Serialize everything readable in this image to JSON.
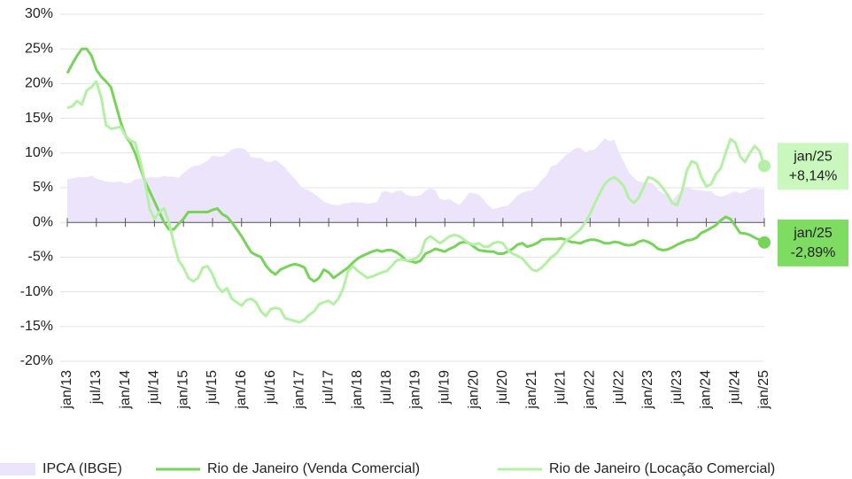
{
  "chart_data": {
    "type": "line",
    "categories": [
      "jan/13",
      null,
      null,
      null,
      null,
      null,
      "jul/13",
      null,
      null,
      null,
      null,
      null,
      "jan/14",
      null,
      null,
      null,
      null,
      null,
      "jul/14",
      null,
      null,
      null,
      null,
      null,
      "jan/15",
      null,
      null,
      null,
      null,
      null,
      "jul/15",
      null,
      null,
      null,
      null,
      null,
      "jan/16",
      null,
      null,
      null,
      null,
      null,
      "jul/16",
      null,
      null,
      null,
      null,
      null,
      "jan/17",
      null,
      null,
      null,
      null,
      null,
      "jul/17",
      null,
      null,
      null,
      null,
      null,
      "jan/18",
      null,
      null,
      null,
      null,
      null,
      "jul/18",
      null,
      null,
      null,
      null,
      null,
      "jan/19",
      null,
      null,
      null,
      null,
      null,
      "jul/19",
      null,
      null,
      null,
      null,
      null,
      "jan/20",
      null,
      null,
      null,
      null,
      null,
      "jul/20",
      null,
      null,
      null,
      null,
      null,
      "jan/21",
      null,
      null,
      null,
      null,
      null,
      "jul/21",
      null,
      null,
      null,
      null,
      null,
      "jan/22",
      null,
      null,
      null,
      null,
      null,
      "jul/22",
      null,
      null,
      null,
      null,
      null,
      "jan/23",
      null,
      null,
      null,
      null,
      null,
      "jul/23",
      null,
      null,
      null,
      null,
      null,
      "jan/24",
      null,
      null,
      null,
      null,
      null,
      "jul/24",
      null,
      null,
      null,
      null,
      null,
      "jan/25"
    ],
    "series": [
      {
        "name": "IPCA (IBGE)",
        "color": "#ece4fa",
        "kind": "area",
        "values": [
          6.2,
          6.3,
          6.5,
          6.5,
          6.5,
          6.7,
          6.3,
          6.1,
          5.9,
          5.8,
          5.8,
          5.9,
          5.6,
          5.7,
          6.2,
          6.3,
          6.4,
          6.5,
          6.5,
          6.5,
          6.7,
          6.6,
          6.6,
          6.4,
          7.1,
          7.7,
          8.1,
          8.2,
          8.5,
          8.9,
          9.6,
          9.5,
          9.5,
          9.9,
          10.5,
          10.7,
          10.7,
          10.4,
          9.4,
          9.3,
          9.3,
          8.8,
          8.7,
          9.0,
          8.5,
          7.9,
          7.0,
          6.3,
          5.4,
          4.8,
          4.6,
          4.1,
          3.6,
          3.0,
          2.7,
          2.5,
          2.5,
          2.7,
          2.8,
          2.9,
          2.9,
          2.8,
          2.7,
          2.8,
          2.9,
          4.4,
          4.5,
          4.2,
          4.5,
          4.6,
          4.0,
          3.8,
          3.8,
          3.9,
          4.6,
          4.9,
          4.7,
          3.4,
          3.2,
          3.4,
          2.9,
          2.5,
          3.3,
          4.3,
          4.2,
          4.0,
          3.3,
          2.4,
          1.9,
          2.1,
          2.3,
          2.4,
          3.1,
          3.9,
          4.3,
          4.5,
          4.6,
          5.2,
          6.1,
          6.8,
          8.1,
          8.3,
          9.0,
          9.7,
          10.2,
          10.7,
          10.7,
          10.1,
          10.4,
          10.5,
          11.3,
          12.1,
          11.7,
          11.9,
          10.1,
          8.7,
          7.2,
          6.5,
          5.9,
          5.8,
          5.8,
          5.6,
          4.7,
          4.2,
          3.9,
          3.2,
          4.0,
          4.6,
          5.2,
          4.8,
          4.7,
          4.6,
          4.5,
          4.5,
          3.9,
          3.7,
          3.9,
          4.2,
          4.5,
          4.2,
          4.4,
          4.8,
          4.9,
          4.8,
          4.8
        ]
      },
      {
        "name": "Rio de Janeiro (Venda Comercial)",
        "color": "#77d35a",
        "kind": "line",
        "values": [
          21.5,
          22.8,
          24,
          25,
          25,
          24,
          22,
          21,
          20.3,
          19.5,
          17,
          14.5,
          12.5,
          11.5,
          10,
          8,
          6,
          4.5,
          3,
          1.5,
          0,
          -1,
          -1,
          -0.2,
          0.5,
          1.5,
          1.5,
          1.5,
          1.5,
          1.5,
          1.8,
          2,
          1.2,
          0.8,
          0,
          -1,
          -2,
          -3.2,
          -4.3,
          -4.7,
          -5,
          -6.2,
          -7,
          -7.5,
          -6.8,
          -6.5,
          -6.2,
          -6,
          -6.2,
          -6.5,
          -8,
          -8.5,
          -8,
          -6.8,
          -7.2,
          -8,
          -7.5,
          -7,
          -6.5,
          -5.8,
          -5.2,
          -4.8,
          -4.5,
          -4.2,
          -4,
          -4.2,
          -4,
          -4,
          -4.3,
          -4.8,
          -5.5,
          -5.6,
          -5.8,
          -5.5,
          -4.5,
          -4.2,
          -3.8,
          -4,
          -4.2,
          -3.8,
          -3.5,
          -3,
          -2.8,
          -3,
          -3.5,
          -4,
          -4.1,
          -4.2,
          -4.2,
          -4.5,
          -4.5,
          -4.2,
          -3.8,
          -3.2,
          -3,
          -3.5,
          -3.3,
          -3,
          -2.5,
          -2.4,
          -2.4,
          -2.4,
          -2.3,
          -2.5,
          -2.8,
          -2.9,
          -3,
          -2.7,
          -2.5,
          -2.5,
          -2.7,
          -3,
          -3,
          -2.8,
          -2.9,
          -3.2,
          -3.3,
          -3.2,
          -2.8,
          -2.6,
          -2.8,
          -3.2,
          -3.8,
          -4,
          -3.9,
          -3.6,
          -3.2,
          -2.9,
          -2.6,
          -2.5,
          -2.2,
          -1.5,
          -1.2,
          -0.8,
          -0.4,
          0.3,
          0.8,
          0.5,
          -0.5,
          -1.5,
          -1.6,
          -1.8,
          -2.2,
          -2.5,
          -2.89
        ],
        "value_labels": [
          null,
          null,
          null,
          null,
          null,
          null,
          null,
          null,
          null,
          null,
          null,
          null,
          null,
          null,
          null,
          null,
          null,
          null,
          null,
          null,
          null,
          null,
          null,
          null,
          null,
          null,
          null,
          null,
          null,
          null,
          null,
          null,
          null,
          null,
          null,
          null,
          null,
          null,
          null,
          null,
          null,
          null,
          null,
          null,
          null,
          null,
          null,
          null,
          null,
          null,
          null,
          null,
          null,
          null,
          null,
          null,
          null,
          null,
          null,
          null,
          null,
          null,
          null,
          null,
          null,
          null,
          null,
          null,
          null,
          null,
          null,
          null,
          null,
          null,
          null,
          null,
          null,
          null,
          null,
          null,
          null,
          null,
          null,
          null,
          null,
          null,
          null,
          null,
          null,
          null,
          null,
          null,
          null,
          null,
          null,
          null,
          null,
          null,
          null,
          null,
          null,
          null,
          null,
          null,
          null,
          null,
          null,
          null,
          null,
          null,
          null,
          null,
          null,
          null,
          null,
          null,
          null,
          null,
          null,
          null,
          null,
          null,
          null,
          null,
          null,
          null,
          null,
          null,
          null,
          null,
          null,
          null,
          null,
          null,
          null,
          null,
          null,
          null,
          null,
          null,
          null,
          null,
          null,
          null,
          "-2,89%"
        ]
      },
      {
        "name": "Rio de Janeiro (Locação Comercial)",
        "color": "#b4f0a4",
        "kind": "line",
        "values": [
          16.5,
          16.7,
          17.5,
          17,
          19,
          19.5,
          20.3,
          18,
          14,
          13.5,
          13.6,
          13.8,
          12.5,
          11.8,
          11.5,
          9,
          6,
          2,
          0.5,
          1.5,
          2,
          0,
          -3,
          -5.5,
          -6.5,
          -8,
          -8.5,
          -8,
          -6.5,
          -6.3,
          -7.5,
          -9.2,
          -10,
          -9.5,
          -11,
          -11.5,
          -12,
          -11.2,
          -11,
          -11.5,
          -12.8,
          -13.5,
          -12.5,
          -12.3,
          -12.5,
          -13.8,
          -14,
          -14.2,
          -14.4,
          -14,
          -13.3,
          -12.8,
          -11.8,
          -11.5,
          -11.3,
          -11.8,
          -11,
          -9.5,
          -7,
          -6.3,
          -7,
          -7.5,
          -8,
          -7.8,
          -7.5,
          -7.2,
          -7,
          -6.3,
          -5.5,
          -5.3,
          -5.5,
          -5.4,
          -5.2,
          -4.5,
          -2.5,
          -2,
          -2.5,
          -3,
          -2.5,
          -2,
          -1.8,
          -2,
          -2.5,
          -3,
          -3.2,
          -3,
          -3.5,
          -3.5,
          -3,
          -2.8,
          -3,
          -4,
          -4.5,
          -4.8,
          -5.2,
          -6,
          -6.8,
          -7,
          -6.5,
          -5.8,
          -5,
          -4.5,
          -3.6,
          -2.6,
          -2.2,
          -1.6,
          -1,
          0,
          1.2,
          2.8,
          4.2,
          5.5,
          6.2,
          6.5,
          6,
          5.2,
          3.5,
          2.8,
          3.5,
          5,
          6.5,
          6.3,
          5.8,
          5,
          4,
          2.8,
          2.5,
          4.5,
          7.5,
          8.8,
          8.5,
          6.5,
          5.2,
          5.5,
          7,
          7.8,
          10,
          12,
          11.5,
          9.5,
          8.7,
          10,
          11,
          10.3,
          8.14
        ],
        "value_labels": [
          null,
          null,
          null,
          null,
          null,
          null,
          null,
          null,
          null,
          null,
          null,
          null,
          null,
          null,
          null,
          null,
          null,
          null,
          null,
          null,
          null,
          null,
          null,
          null,
          null,
          null,
          null,
          null,
          null,
          null,
          null,
          null,
          null,
          null,
          null,
          null,
          null,
          null,
          null,
          null,
          null,
          null,
          null,
          null,
          null,
          null,
          null,
          null,
          null,
          null,
          null,
          null,
          null,
          null,
          null,
          null,
          null,
          null,
          null,
          null,
          null,
          null,
          null,
          null,
          null,
          null,
          null,
          null,
          null,
          null,
          null,
          null,
          null,
          null,
          null,
          null,
          null,
          null,
          null,
          null,
          null,
          null,
          null,
          null,
          null,
          null,
          null,
          null,
          null,
          null,
          null,
          null,
          null,
          null,
          null,
          null,
          null,
          null,
          null,
          null,
          null,
          null,
          null,
          null,
          null,
          null,
          null,
          null,
          null,
          null,
          null,
          null,
          null,
          null,
          null,
          null,
          null,
          null,
          null,
          null,
          null,
          null,
          null,
          null,
          null,
          null,
          null,
          null,
          null,
          null,
          null,
          null,
          null,
          null,
          null,
          null,
          null,
          null,
          null,
          null,
          null,
          null,
          null,
          null,
          "+8,14%"
        ]
      }
    ],
    "ylim": [
      -20,
      30
    ],
    "yticks": [
      {
        "value": -20,
        "label": "-20%"
      },
      {
        "value": -15,
        "label": "-15%"
      },
      {
        "value": -10,
        "label": "-10%"
      },
      {
        "value": -5,
        "label": "-5%"
      },
      {
        "value": 0,
        "label": "0%"
      },
      {
        "value": 5,
        "label": "5%"
      },
      {
        "value": 10,
        "label": "10%"
      },
      {
        "value": 15,
        "label": "15%"
      },
      {
        "value": 20,
        "label": "20%"
      },
      {
        "value": 25,
        "label": "25%"
      },
      {
        "value": 30,
        "label": "30%"
      }
    ],
    "grid": true,
    "legend": "bottom"
  }
}
